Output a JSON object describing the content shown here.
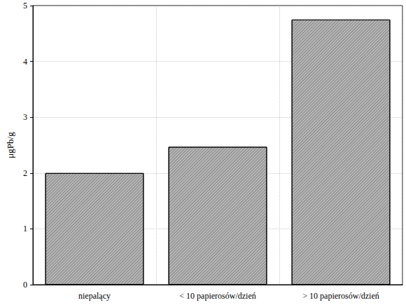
{
  "chart_data": {
    "type": "bar",
    "categories": [
      "niepalący",
      "< 10 papierosów/dzień",
      "> 10 papierosów/dzień"
    ],
    "values": [
      2.0,
      2.47,
      4.75
    ],
    "color": "#b8b8b8",
    "y_label": "μgPb/g",
    "ylim": [
      0,
      5
    ],
    "yticks": [
      0,
      1,
      2,
      3,
      4,
      5
    ],
    "grid": true
  }
}
